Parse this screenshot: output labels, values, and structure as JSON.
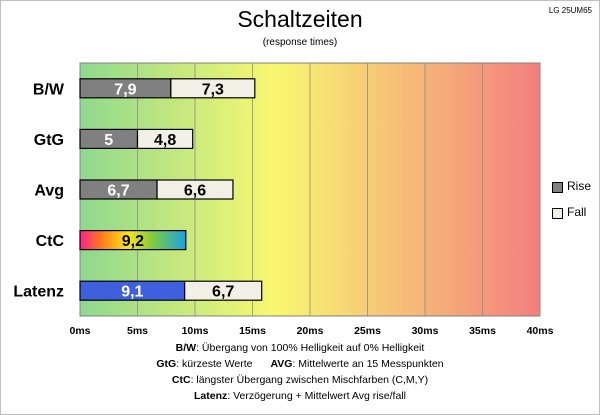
{
  "brand": "LG 25UM65",
  "chart_data": {
    "type": "bar",
    "orientation": "horizontal",
    "stacked": true,
    "title": "Schaltzeiten",
    "subtitle": "(response times)",
    "categories": [
      "B/W",
      "GtG",
      "Avg",
      "CtC",
      "Latenz"
    ],
    "xlim": [
      0,
      40
    ],
    "x_ticks": [
      0,
      5,
      10,
      15,
      20,
      25,
      30,
      35,
      40
    ],
    "x_tick_unit": "ms",
    "grid": true,
    "legend_position": "right",
    "series": [
      {
        "name": "Rise",
        "color": "#808080",
        "values": [
          7.9,
          5,
          6.7,
          null,
          null
        ],
        "label_color": "#ffffff"
      },
      {
        "name": "Fall",
        "color": "#f2efe6",
        "values": [
          7.3,
          4.8,
          6.6,
          null,
          null
        ],
        "label_color": "#000000"
      }
    ],
    "special_bars": [
      {
        "category": "CtC",
        "value": 9.2,
        "fill": "rainbow",
        "label_color": "#000000"
      },
      {
        "category": "Latenz",
        "value": 9.1,
        "fill": "#3f5fdf",
        "label_color": "#ffffff"
      },
      {
        "category": "Latenz",
        "value": 6.7,
        "fill": "#f2efe6",
        "label_color": "#000000",
        "stack_after": 9.1
      }
    ],
    "background_gradient": [
      "#8ed88e",
      "#f8f870",
      "#f37f7f"
    ]
  },
  "legend": {
    "rise": "Rise",
    "fall": "Fall"
  },
  "notes": [
    {
      "key": "B/W",
      "text": ":  Übergang von 100% Helligkeit auf 0% Helligkeit"
    },
    {
      "key": "GtG",
      "text": ": kürzeste  Werte",
      "key2": "AVG",
      "text2": ": Mittelwerte  an 15 Messpunkten"
    },
    {
      "key": "CtC",
      "text": ": längster Übergang  zwischen Mischfarben (C,M,Y)"
    },
    {
      "key": "Latenz",
      "text": ": Verzögerung  + Mittelwert Avg rise/fall"
    }
  ]
}
